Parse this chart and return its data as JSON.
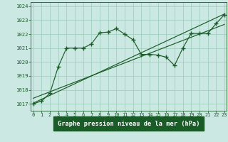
{
  "xlabel": "Graphe pression niveau de la mer (hPa)",
  "bg_color": "#cce8e2",
  "plot_bg_color": "#cce8e2",
  "grid_color": "#99ccbb",
  "line_color": "#1a5c28",
  "xlabel_bg": "#1a5c28",
  "xlabel_fg": "#ffffff",
  "ylim": [
    1016.5,
    1024.3
  ],
  "xlim": [
    -0.3,
    23.3
  ],
  "yticks": [
    1017,
    1018,
    1019,
    1020,
    1021,
    1022,
    1023,
    1024
  ],
  "xticks": [
    0,
    1,
    2,
    3,
    4,
    5,
    6,
    7,
    8,
    9,
    10,
    11,
    12,
    13,
    14,
    15,
    16,
    17,
    18,
    19,
    20,
    21,
    22,
    23
  ],
  "line1_x": [
    0,
    1,
    2,
    3,
    4,
    5,
    6,
    7,
    8,
    9,
    10,
    11,
    12,
    13,
    14,
    15,
    16,
    17,
    18,
    19,
    20,
    21,
    22,
    23
  ],
  "line1_y": [
    1017.0,
    1017.2,
    1017.75,
    1019.65,
    1021.0,
    1021.0,
    1021.0,
    1021.3,
    1022.1,
    1022.15,
    1022.4,
    1022.0,
    1021.6,
    1020.55,
    1020.55,
    1020.5,
    1020.35,
    1019.75,
    1021.0,
    1022.05,
    1022.05,
    1022.05,
    1022.75,
    1023.4
  ],
  "line2_x": [
    0,
    23
  ],
  "line2_y": [
    1017.05,
    1023.45
  ],
  "line3_x": [
    0,
    23
  ],
  "line3_y": [
    1017.4,
    1022.7
  ]
}
